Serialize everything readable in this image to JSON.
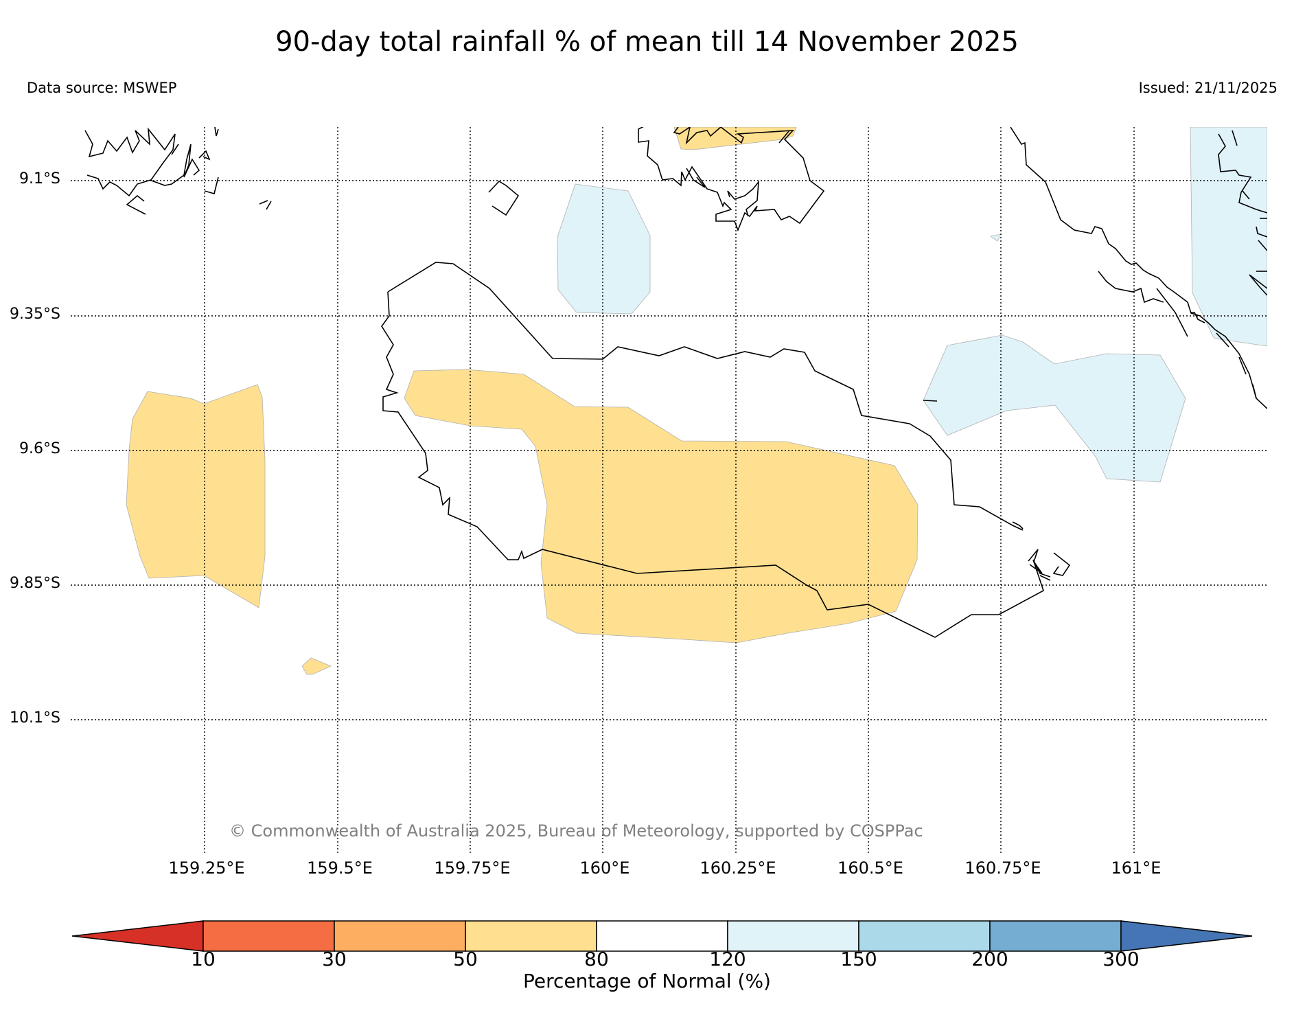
{
  "title": "90-day total rainfall % of mean till 14 November 2025",
  "data_source": "Data source: MSWEP",
  "issued": "Issued: 21/11/2025",
  "copyright": "© Commonwealth of Australia 2025, Bureau of Meteorology, supported by COSPPac",
  "latitude_labels": [
    "9.1°S",
    "9.35°S",
    "9.6°S",
    "9.85°S",
    "10.1°S"
  ],
  "longitude_labels": [
    "159.25°E",
    "159.5°E",
    "159.75°E",
    "160°E",
    "160.25°E",
    "160.5°E",
    "160.75°E",
    "161°E"
  ],
  "colorbar": {
    "label": "Percentage of Normal (%)",
    "ticks": [
      "10",
      "30",
      "50",
      "80",
      "120",
      "150",
      "200",
      "300"
    ],
    "colors": [
      "#d73027",
      "#f46d43",
      "#fdae61",
      "#fee090",
      "#ffffff",
      "#e0f3f8",
      "#abd9e9",
      "#74add1",
      "#4575b4"
    ]
  },
  "legend_colors": {
    "dry_50_80": "#fee090",
    "wet_120_150": "#e0f3f8",
    "coast": "#000000"
  }
}
